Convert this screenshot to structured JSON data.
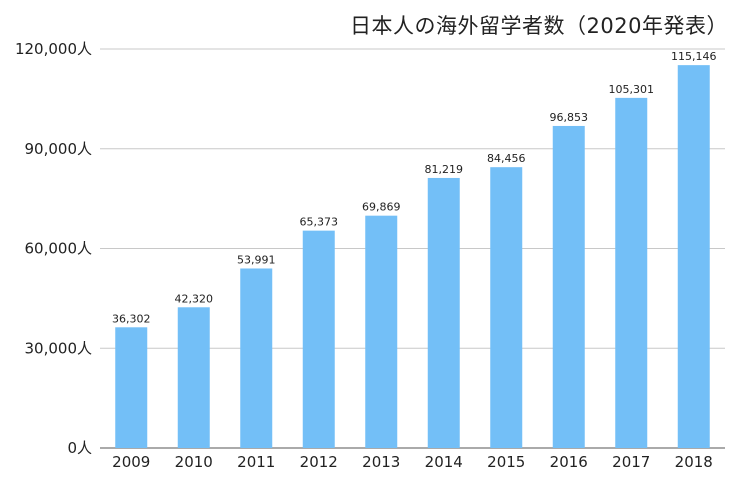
{
  "chart_data": {
    "type": "bar",
    "title": "日本人の海外留学者数（2020年発表）",
    "xlabel": "",
    "ylabel": "",
    "categories": [
      "2009",
      "2010",
      "2011",
      "2012",
      "2013",
      "2014",
      "2015",
      "2016",
      "2017",
      "2018"
    ],
    "values": [
      36302,
      42320,
      53991,
      65373,
      69869,
      81219,
      84456,
      96853,
      105301,
      115146
    ],
    "data_labels": [
      "36,302",
      "42,320",
      "53,991",
      "65,373",
      "69,869",
      "81,219",
      "84,456",
      "96,853",
      "105,301",
      "115,146"
    ],
    "ylim": [
      0,
      120000
    ],
    "y_ticks": [
      0,
      30000,
      60000,
      90000,
      120000
    ],
    "y_tick_labels": [
      "0人",
      "30,000人",
      "60,000人",
      "90,000人",
      "120,000人"
    ],
    "grid": true,
    "legend": "none",
    "colors": {
      "bar": "#73BFF7",
      "grid": "#c8c8c8",
      "axis": "#555555"
    }
  }
}
